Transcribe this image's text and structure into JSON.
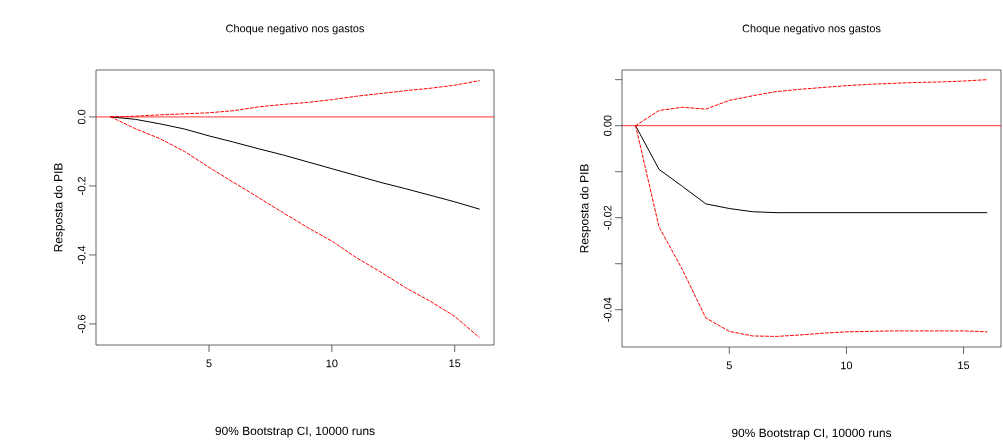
{
  "chart_data": [
    {
      "type": "line",
      "title": "Choque negativo nos gastos",
      "ylabel": "Resposta do PIB",
      "annotations": [
        "90% Bootstrap CI, 10000 runs"
      ],
      "x": [
        1,
        2,
        3,
        4,
        5,
        6,
        7,
        8,
        9,
        10,
        11,
        12,
        13,
        14,
        15,
        16
      ],
      "series": [
        {
          "color": "#000000",
          "line_style": "solid",
          "values": [
            0,
            -0.007,
            -0.02,
            -0.035,
            -0.055,
            -0.073,
            -0.092,
            -0.11,
            -0.13,
            -0.15,
            -0.17,
            -0.19,
            -0.208,
            -0.227,
            -0.246,
            -0.267
          ]
        },
        {
          "color": "#ff0000",
          "line_style": "dashed",
          "values": [
            0,
            0.002,
            0.006,
            0.009,
            0.012,
            0.018,
            0.029,
            0.036,
            0.042,
            0.05,
            0.06,
            0.068,
            0.076,
            0.083,
            0.092,
            0.105
          ]
        },
        {
          "color": "#ff0000",
          "line_style": "dashed",
          "values": [
            0,
            -0.034,
            -0.063,
            -0.1,
            -0.146,
            -0.19,
            -0.233,
            -0.277,
            -0.32,
            -0.36,
            -0.408,
            -0.45,
            -0.495,
            -0.534,
            -0.578,
            -0.639
          ]
        }
      ],
      "ref_lines": [
        {
          "axis": "y",
          "value": 0,
          "color": "#ff0000"
        }
      ],
      "xlim": [
        0.4,
        16.6
      ],
      "xticks": [
        5,
        10,
        15
      ],
      "ylim": [
        -0.661,
        0.136
      ],
      "yticks": [
        -0.6,
        -0.4,
        -0.2,
        {
          "value": 0,
          "label": "0.0"
        }
      ],
      "grid": false,
      "legend": false,
      "marker": "none"
    },
    {
      "type": "line",
      "title": "Choque negativo nos gastos",
      "ylabel": "Resposta do PIB",
      "annotations": [
        "90% Bootstrap CI, 10000 runs"
      ],
      "x": [
        1,
        2,
        3,
        4,
        5,
        6,
        7,
        8,
        9,
        10,
        11,
        12,
        13,
        14,
        15,
        16
      ],
      "series": [
        {
          "color": "#000000",
          "line_style": "solid",
          "values": [
            0,
            -0.0095,
            -0.0132,
            -0.017,
            -0.018,
            -0.0187,
            -0.0189,
            -0.0189,
            -0.0189,
            -0.0189,
            -0.0189,
            -0.0189,
            -0.0189,
            -0.0189,
            -0.0189,
            -0.0189
          ]
        },
        {
          "color": "#ff0000",
          "line_style": "dashed",
          "values": [
            0,
            0.0033,
            0.004,
            0.0036,
            0.0055,
            0.0065,
            0.0074,
            0.0079,
            0.0083,
            0.0087,
            0.009,
            0.0092,
            0.0094,
            0.0095,
            0.0097,
            0.01
          ]
        },
        {
          "color": "#ff0000",
          "line_style": "dashed",
          "values": [
            0,
            -0.022,
            -0.0313,
            -0.0418,
            -0.0447,
            -0.0457,
            -0.0458,
            -0.0455,
            -0.0451,
            -0.0448,
            -0.0447,
            -0.0446,
            -0.0446,
            -0.0446,
            -0.0446,
            -0.0448
          ]
        }
      ],
      "ref_lines": [
        {
          "axis": "y",
          "value": 0,
          "color": "#ff0000"
        }
      ],
      "xlim": [
        0.42,
        16.6
      ],
      "xticks": [
        5,
        10,
        15
      ],
      "ylim": [
        -0.0481,
        0.0121
      ],
      "yticks": [
        {
          "value": -0.04,
          "label": "-0.04"
        },
        {
          "value": -0.03,
          "label": null
        },
        {
          "value": -0.02,
          "label": "-0.02"
        },
        {
          "value": -0.01,
          "label": null
        },
        {
          "value": 0,
          "label": "0.00"
        },
        {
          "value": 0.01,
          "label": null
        }
      ],
      "grid": false,
      "legend": false,
      "marker": "none"
    }
  ]
}
